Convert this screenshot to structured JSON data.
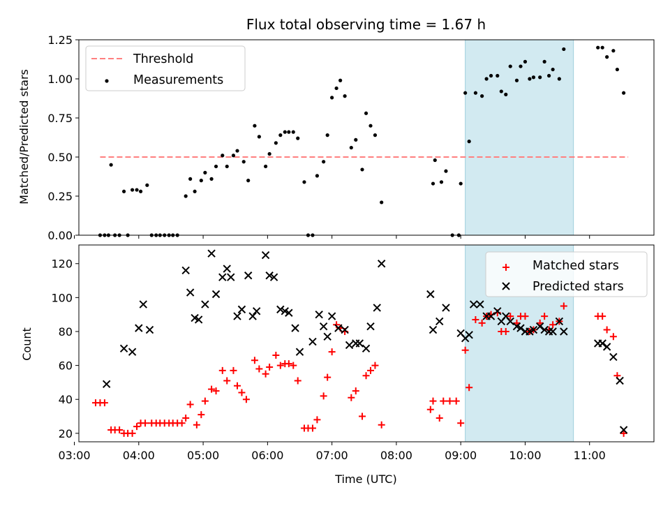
{
  "title": "Flux total observing time = 1.67 h",
  "colors": {
    "threshold": "#ff7f7f",
    "measurement": "#000000",
    "matched": "#ff0000",
    "predicted": "#000000",
    "highlight": "#add8e6"
  },
  "chart_data": [
    {
      "type": "scatter",
      "ylabel": "Matched/Predicted stars",
      "xlabel": "",
      "xlim": [
        3.07,
        12.0
      ],
      "ylim": [
        0,
        1.25
      ],
      "yticks": [
        0.0,
        0.25,
        0.5,
        0.75,
        1.0,
        1.25
      ],
      "ytick_labels": [
        "0.00",
        "0.25",
        "0.50",
        "0.75",
        "1.00",
        "1.25"
      ],
      "highlight_span": [
        9.07,
        10.75
      ],
      "threshold": {
        "name": "Threshold",
        "y": 0.5,
        "x": [
          3.4,
          11.6
        ]
      },
      "legend": [
        "Threshold",
        "Measurements"
      ],
      "legend_position": "upper-left",
      "series": [
        {
          "name": "Measurements",
          "marker": "dot",
          "points": [
            [
              3.4,
              0
            ],
            [
              3.47,
              0
            ],
            [
              3.53,
              0
            ],
            [
              3.57,
              0.45
            ],
            [
              3.63,
              0
            ],
            [
              3.7,
              0
            ],
            [
              3.77,
              0.28
            ],
            [
              3.83,
              0
            ],
            [
              3.9,
              0.29
            ],
            [
              3.97,
              0.29
            ],
            [
              4.03,
              0.28
            ],
            [
              4.13,
              0.32
            ],
            [
              4.2,
              0
            ],
            [
              4.27,
              0
            ],
            [
              4.33,
              0
            ],
            [
              4.4,
              0
            ],
            [
              4.47,
              0
            ],
            [
              4.53,
              0
            ],
            [
              4.6,
              0
            ],
            [
              4.73,
              0.25
            ],
            [
              4.8,
              0.36
            ],
            [
              4.87,
              0.28
            ],
            [
              4.97,
              0.35
            ],
            [
              5.03,
              0.4
            ],
            [
              5.13,
              0.36
            ],
            [
              5.2,
              0.44
            ],
            [
              5.3,
              0.51
            ],
            [
              5.37,
              0.44
            ],
            [
              5.47,
              0.51
            ],
            [
              5.53,
              0.54
            ],
            [
              5.63,
              0.47
            ],
            [
              5.7,
              0.35
            ],
            [
              5.8,
              0.7
            ],
            [
              5.87,
              0.63
            ],
            [
              5.97,
              0.44
            ],
            [
              6.03,
              0.52
            ],
            [
              6.13,
              0.59
            ],
            [
              6.2,
              0.64
            ],
            [
              6.27,
              0.66
            ],
            [
              6.33,
              0.66
            ],
            [
              6.4,
              0.66
            ],
            [
              6.47,
              0.62
            ],
            [
              6.57,
              0.34
            ],
            [
              6.63,
              0
            ],
            [
              6.7,
              0
            ],
            [
              6.77,
              0.38
            ],
            [
              6.87,
              0.47
            ],
            [
              6.93,
              0.64
            ],
            [
              7.0,
              0.88
            ],
            [
              7.07,
              0.94
            ],
            [
              7.13,
              0.99
            ],
            [
              7.2,
              0.89
            ],
            [
              7.3,
              0.56
            ],
            [
              7.37,
              0.61
            ],
            [
              7.47,
              0.42
            ],
            [
              7.53,
              0.78
            ],
            [
              7.6,
              0.7
            ],
            [
              7.67,
              0.64
            ],
            [
              7.77,
              0.21
            ],
            [
              8.57,
              0.33
            ],
            [
              8.6,
              0.48
            ],
            [
              8.7,
              0.34
            ],
            [
              8.77,
              0.41
            ],
            [
              8.87,
              0
            ],
            [
              8.97,
              0
            ],
            [
              9.0,
              0.33
            ],
            [
              9.07,
              0.91
            ],
            [
              9.13,
              0.6
            ],
            [
              9.23,
              0.91
            ],
            [
              9.33,
              0.89
            ],
            [
              9.4,
              1.0
            ],
            [
              9.47,
              1.02
            ],
            [
              9.57,
              1.02
            ],
            [
              9.63,
              0.92
            ],
            [
              9.7,
              0.9
            ],
            [
              9.77,
              1.08
            ],
            [
              9.87,
              0.99
            ],
            [
              9.93,
              1.08
            ],
            [
              10.0,
              1.11
            ],
            [
              10.07,
              1.0
            ],
            [
              10.13,
              1.01
            ],
            [
              10.23,
              1.01
            ],
            [
              10.3,
              1.11
            ],
            [
              10.37,
              1.02
            ],
            [
              10.43,
              1.06
            ],
            [
              10.53,
              1.0
            ],
            [
              10.6,
              1.19
            ],
            [
              11.13,
              1.2
            ],
            [
              11.2,
              1.2
            ],
            [
              11.27,
              1.14
            ],
            [
              11.37,
              1.18
            ],
            [
              11.43,
              1.06
            ],
            [
              11.53,
              0.91
            ]
          ]
        }
      ]
    },
    {
      "type": "scatter",
      "ylabel": "Count",
      "xlabel": "Time (UTC)",
      "xlim": [
        3.07,
        12.0
      ],
      "ylim": [
        15,
        131
      ],
      "yticks": [
        20,
        40,
        60,
        80,
        100,
        120
      ],
      "xticks": [
        3,
        4,
        5,
        6,
        7,
        8,
        9,
        10,
        11
      ],
      "xtick_labels": [
        "03:00",
        "04:00",
        "05:00",
        "06:00",
        "07:00",
        "08:00",
        "09:00",
        "10:00",
        "11:00"
      ],
      "highlight_span": [
        9.07,
        10.75
      ],
      "legend": [
        "Matched stars",
        "Predicted stars"
      ],
      "legend_position": "upper-right",
      "series": [
        {
          "name": "Matched stars",
          "marker": "plus",
          "points": [
            [
              3.33,
              38
            ],
            [
              3.4,
              38
            ],
            [
              3.47,
              38
            ],
            [
              3.57,
              22
            ],
            [
              3.63,
              22
            ],
            [
              3.7,
              22
            ],
            [
              3.77,
              20
            ],
            [
              3.83,
              20
            ],
            [
              3.9,
              20
            ],
            [
              3.97,
              24
            ],
            [
              4.03,
              26
            ],
            [
              4.1,
              26
            ],
            [
              4.2,
              26
            ],
            [
              4.27,
              26
            ],
            [
              4.33,
              26
            ],
            [
              4.4,
              26
            ],
            [
              4.47,
              26
            ],
            [
              4.53,
              26
            ],
            [
              4.6,
              26
            ],
            [
              4.67,
              26
            ],
            [
              4.73,
              29
            ],
            [
              4.8,
              37
            ],
            [
              4.9,
              25
            ],
            [
              4.97,
              31
            ],
            [
              5.03,
              39
            ],
            [
              5.13,
              46
            ],
            [
              5.2,
              45
            ],
            [
              5.3,
              57
            ],
            [
              5.37,
              51
            ],
            [
              5.47,
              57
            ],
            [
              5.53,
              48
            ],
            [
              5.6,
              44
            ],
            [
              5.67,
              40
            ],
            [
              5.8,
              63
            ],
            [
              5.87,
              58
            ],
            [
              5.97,
              55
            ],
            [
              6.03,
              59
            ],
            [
              6.13,
              66
            ],
            [
              6.2,
              60
            ],
            [
              6.27,
              61
            ],
            [
              6.33,
              61
            ],
            [
              6.4,
              60
            ],
            [
              6.47,
              51
            ],
            [
              6.57,
              23
            ],
            [
              6.63,
              23
            ],
            [
              6.7,
              23
            ],
            [
              6.77,
              28
            ],
            [
              6.87,
              42
            ],
            [
              6.93,
              53
            ],
            [
              7.0,
              68
            ],
            [
              7.07,
              84
            ],
            [
              7.13,
              82
            ],
            [
              7.2,
              80
            ],
            [
              7.3,
              41
            ],
            [
              7.37,
              45
            ],
            [
              7.47,
              30
            ],
            [
              7.53,
              54
            ],
            [
              7.6,
              57
            ],
            [
              7.67,
              60
            ],
            [
              7.77,
              25
            ],
            [
              8.53,
              34
            ],
            [
              8.57,
              39
            ],
            [
              8.67,
              29
            ],
            [
              8.73,
              39
            ],
            [
              8.83,
              39
            ],
            [
              8.93,
              39
            ],
            [
              9.0,
              26
            ],
            [
              9.07,
              69
            ],
            [
              9.13,
              47
            ],
            [
              9.23,
              87
            ],
            [
              9.33,
              85
            ],
            [
              9.4,
              89
            ],
            [
              9.47,
              90
            ],
            [
              9.57,
              91
            ],
            [
              9.63,
              80
            ],
            [
              9.7,
              80
            ],
            [
              9.77,
              89
            ],
            [
              9.87,
              85
            ],
            [
              9.93,
              89
            ],
            [
              10.0,
              89
            ],
            [
              10.07,
              80
            ],
            [
              10.13,
              81
            ],
            [
              10.23,
              85
            ],
            [
              10.3,
              89
            ],
            [
              10.37,
              81
            ],
            [
              10.43,
              84
            ],
            [
              10.53,
              86
            ],
            [
              10.6,
              95
            ],
            [
              11.13,
              89
            ],
            [
              11.2,
              89
            ],
            [
              11.27,
              81
            ],
            [
              11.37,
              77
            ],
            [
              11.43,
              54
            ],
            [
              11.53,
              20
            ]
          ]
        },
        {
          "name": "Predicted stars",
          "marker": "x",
          "points": [
            [
              3.5,
              49
            ],
            [
              3.77,
              70
            ],
            [
              3.9,
              68
            ],
            [
              4.0,
              82
            ],
            [
              4.07,
              96
            ],
            [
              4.17,
              81
            ],
            [
              4.73,
              116
            ],
            [
              4.8,
              103
            ],
            [
              4.87,
              88
            ],
            [
              4.93,
              87
            ],
            [
              5.03,
              96
            ],
            [
              5.13,
              126
            ],
            [
              5.2,
              102
            ],
            [
              5.3,
              112
            ],
            [
              5.37,
              117
            ],
            [
              5.43,
              112
            ],
            [
              5.53,
              89
            ],
            [
              5.6,
              93
            ],
            [
              5.7,
              113
            ],
            [
              5.77,
              89
            ],
            [
              5.83,
              92
            ],
            [
              5.97,
              125
            ],
            [
              6.03,
              113
            ],
            [
              6.1,
              112
            ],
            [
              6.2,
              93
            ],
            [
              6.27,
              92
            ],
            [
              6.33,
              91
            ],
            [
              6.43,
              82
            ],
            [
              6.5,
              68
            ],
            [
              6.7,
              74
            ],
            [
              6.8,
              90
            ],
            [
              6.87,
              83
            ],
            [
              6.93,
              77
            ],
            [
              7.0,
              89
            ],
            [
              7.1,
              82
            ],
            [
              7.2,
              81
            ],
            [
              7.27,
              72
            ],
            [
              7.37,
              73
            ],
            [
              7.43,
              73
            ],
            [
              7.53,
              70
            ],
            [
              7.6,
              83
            ],
            [
              7.7,
              94
            ],
            [
              7.77,
              120
            ],
            [
              8.53,
              102
            ],
            [
              8.57,
              81
            ],
            [
              8.67,
              86
            ],
            [
              8.77,
              94
            ],
            [
              9.0,
              79
            ],
            [
              9.07,
              76
            ],
            [
              9.13,
              78
            ],
            [
              9.2,
              96
            ],
            [
              9.3,
              96
            ],
            [
              9.4,
              89
            ],
            [
              9.47,
              89
            ],
            [
              9.57,
              92
            ],
            [
              9.63,
              86
            ],
            [
              9.7,
              89
            ],
            [
              9.77,
              86
            ],
            [
              9.87,
              83
            ],
            [
              9.93,
              82
            ],
            [
              10.0,
              80
            ],
            [
              10.07,
              80
            ],
            [
              10.13,
              81
            ],
            [
              10.23,
              83
            ],
            [
              10.3,
              81
            ],
            [
              10.37,
              80
            ],
            [
              10.43,
              80
            ],
            [
              10.53,
              86
            ],
            [
              10.6,
              80
            ],
            [
              11.13,
              73
            ],
            [
              11.2,
              73
            ],
            [
              11.27,
              71
            ],
            [
              11.37,
              65
            ],
            [
              11.47,
              51
            ],
            [
              11.53,
              22
            ]
          ]
        }
      ]
    }
  ]
}
